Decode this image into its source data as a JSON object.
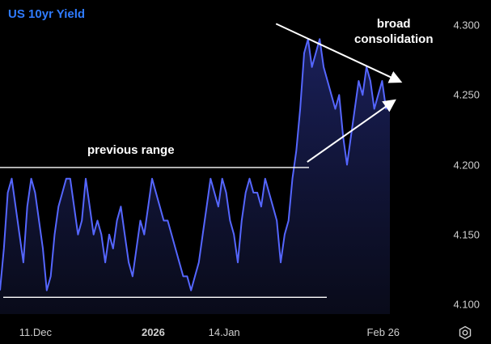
{
  "chart_data": {
    "type": "line",
    "title": "US 10yr Yield",
    "y_ticks": [
      "4.300",
      "4.250",
      "4.200",
      "4.150",
      "4.100"
    ],
    "ylim": [
      4.093,
      4.307
    ],
    "x_ticks": [
      {
        "label": "11.Dec",
        "bold": false,
        "t": 0.091
      },
      {
        "label": "2026",
        "bold": true,
        "t": 0.393
      },
      {
        "label": "14.Jan",
        "bold": false,
        "t": 0.575
      },
      {
        "label": "Feb 26",
        "bold": false,
        "t": 0.983
      }
    ],
    "grid": false,
    "series": [
      {
        "color": "#5566ff",
        "values": [
          4.11,
          4.14,
          4.18,
          4.19,
          4.17,
          4.15,
          4.13,
          4.17,
          4.19,
          4.18,
          4.16,
          4.14,
          4.11,
          4.12,
          4.15,
          4.17,
          4.18,
          4.19,
          4.19,
          4.17,
          4.15,
          4.16,
          4.19,
          4.17,
          4.15,
          4.16,
          4.15,
          4.13,
          4.15,
          4.14,
          4.16,
          4.17,
          4.15,
          4.13,
          4.12,
          4.14,
          4.16,
          4.15,
          4.17,
          4.19,
          4.18,
          4.17,
          4.16,
          4.16,
          4.15,
          4.14,
          4.13,
          4.12,
          4.12,
          4.11,
          4.12,
          4.13,
          4.15,
          4.17,
          4.19,
          4.18,
          4.17,
          4.19,
          4.18,
          4.16,
          4.15,
          4.13,
          4.16,
          4.18,
          4.19,
          4.18,
          4.18,
          4.17,
          4.19,
          4.18,
          4.17,
          4.16,
          4.13,
          4.15,
          4.16,
          4.19,
          4.21,
          4.24,
          4.28,
          4.29,
          4.27,
          4.28,
          4.29,
          4.27,
          4.26,
          4.25,
          4.24,
          4.25,
          4.22,
          4.2,
          4.22,
          4.24,
          4.26,
          4.25,
          4.27,
          4.26,
          4.24,
          4.25,
          4.26,
          4.24,
          4.245
        ]
      }
    ],
    "annotations": [
      {
        "text": "previous range",
        "kind": "range"
      },
      {
        "text": "broad\nconsolidation",
        "kind": "triangle"
      }
    ],
    "range_lines": [
      4.198,
      4.105
    ],
    "triangle": {
      "upper": {
        "t0": 0.708,
        "v0": 4.301,
        "t1": 0.945,
        "v1": 4.257
      },
      "lower": {
        "t0": 0.788,
        "v0": 4.202,
        "t1": 0.93,
        "v1": 4.241
      }
    }
  },
  "icons": {
    "settings": "gear-icon"
  },
  "colors": {
    "line": "#5566ff",
    "title": "#2f7bff",
    "annotation": "#ffffff",
    "background": "#000000"
  }
}
